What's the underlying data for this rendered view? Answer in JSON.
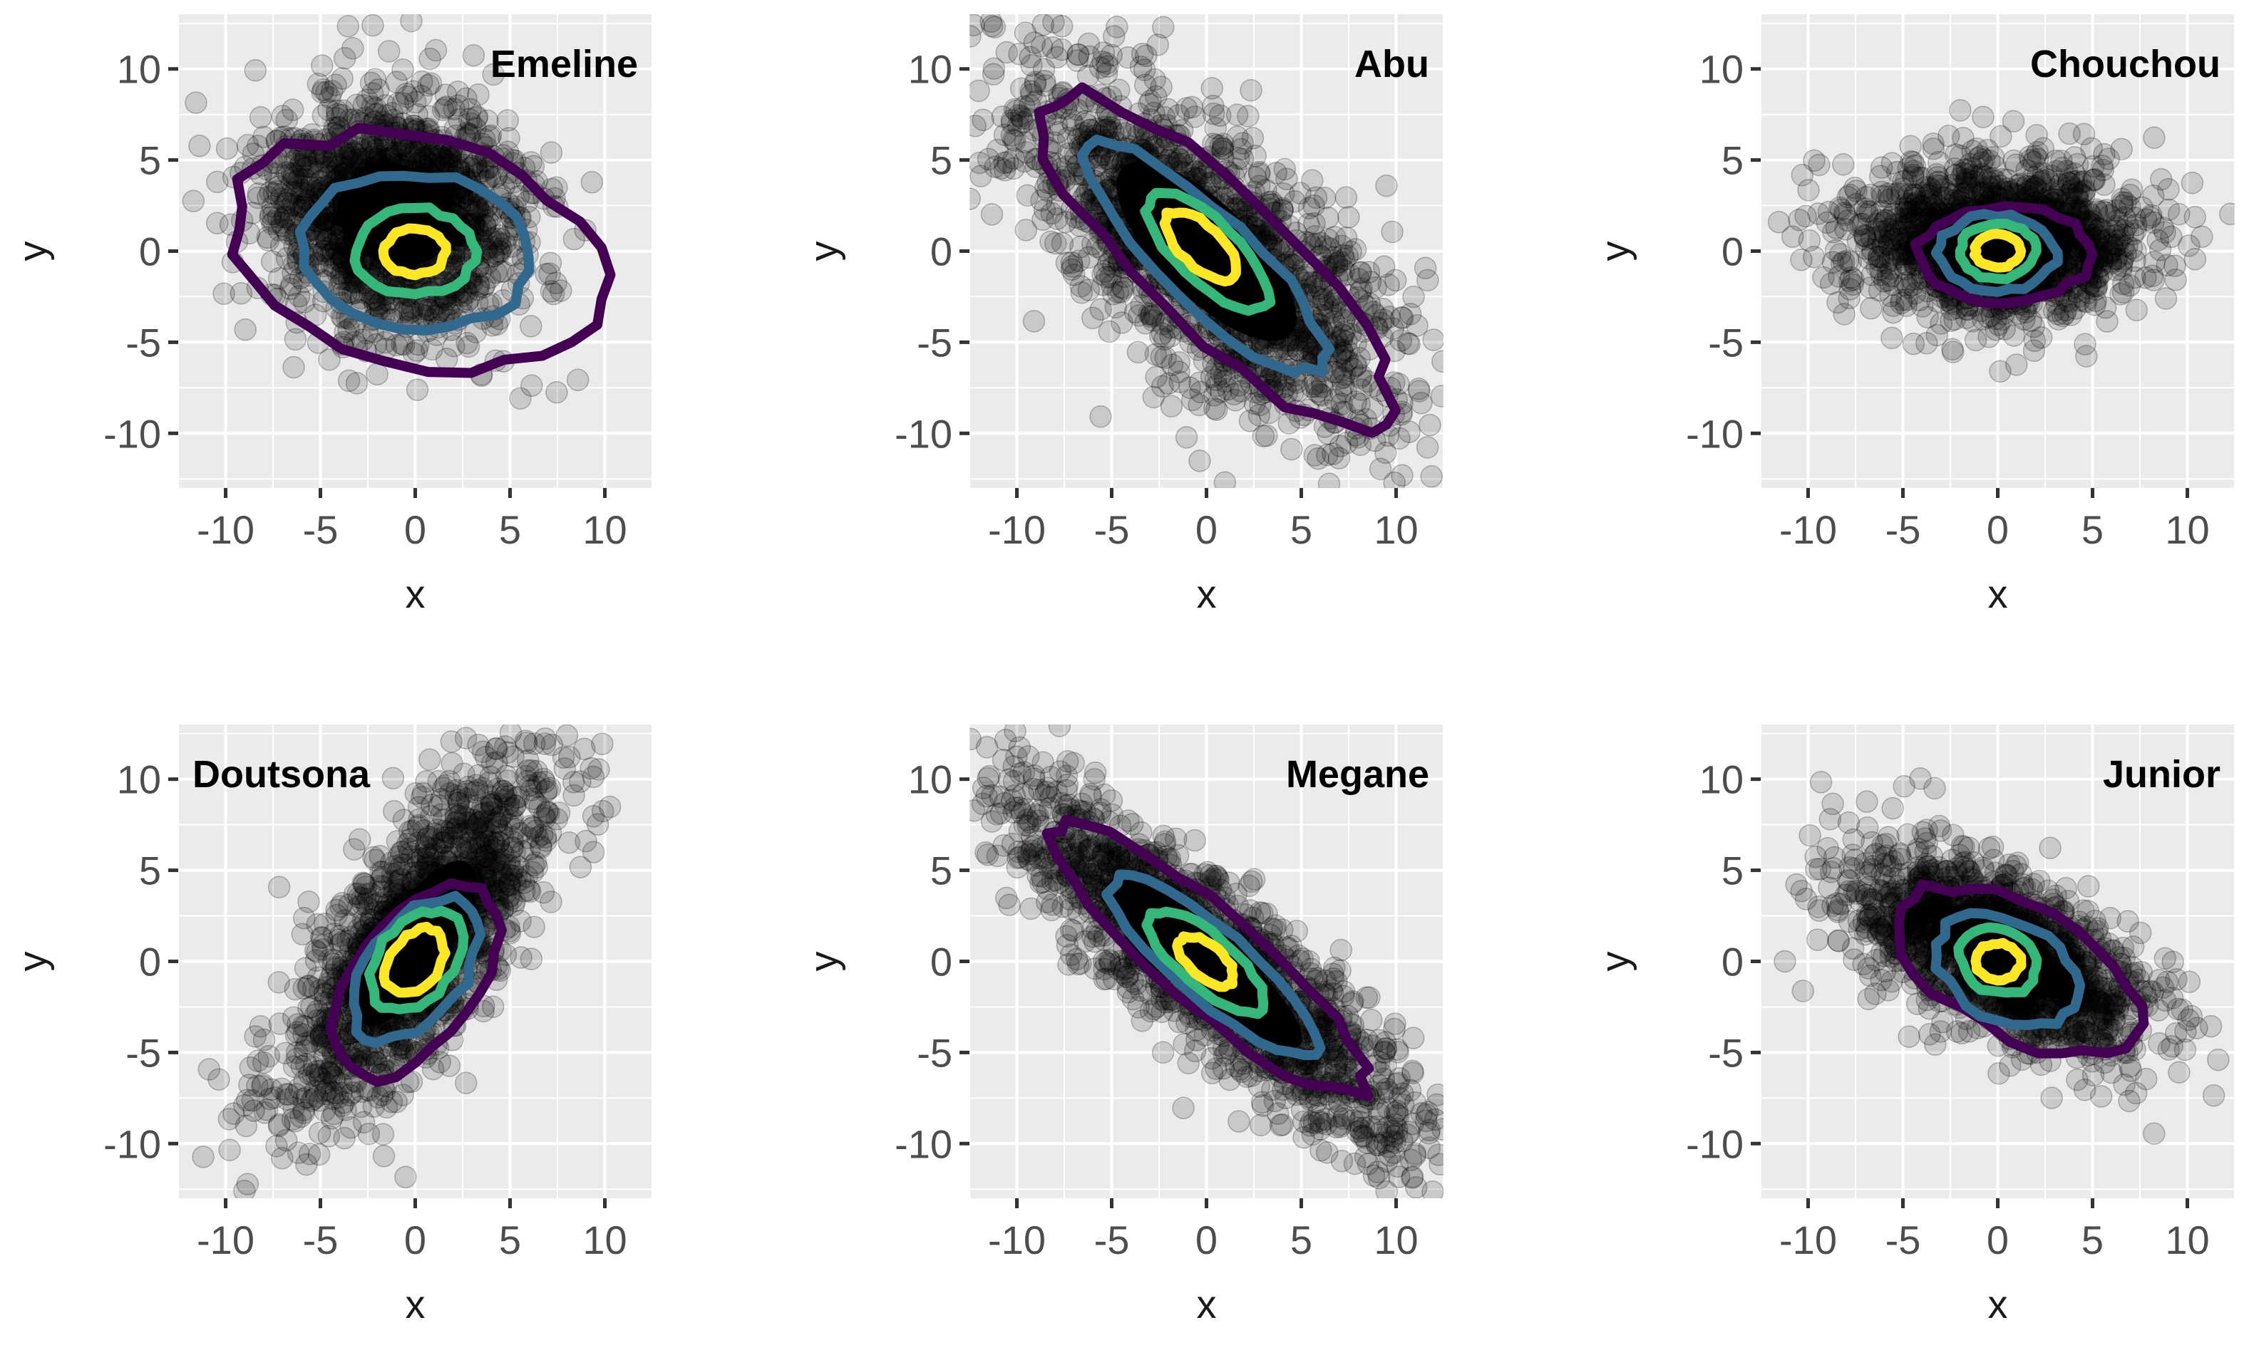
{
  "chart_data": [
    {
      "type": "scatter",
      "title": "Emeline",
      "xlabel": "x",
      "ylabel": "y",
      "xlim": [
        -12.5,
        12.5
      ],
      "ylim": [
        -13,
        13
      ],
      "xticks": [
        -10,
        -5,
        0,
        5,
        10
      ],
      "yticks": [
        -10,
        -5,
        0,
        5,
        10
      ],
      "xtick_labels": [
        "-10",
        "-5",
        "0",
        "5",
        "10"
      ],
      "ytick_labels": [
        "-10",
        "-5",
        "0",
        "5",
        "10"
      ],
      "grid": true,
      "point_cloud": {
        "center": [
          -1,
          2
        ],
        "spread": [
          8,
          7
        ],
        "angle_deg": -25
      },
      "contour_colors": [
        "#440154",
        "#31688e",
        "#35b779",
        "#fde725"
      ],
      "contours": [
        {
          "level": 1,
          "center": [
            0,
            0
          ],
          "rx": 10,
          "ry": 6,
          "angle_deg": -15
        },
        {
          "level": 2,
          "center": [
            0,
            0
          ],
          "rx": 6,
          "ry": 4.2,
          "angle_deg": -10
        },
        {
          "level": 3,
          "center": [
            0,
            0
          ],
          "rx": 3.2,
          "ry": 2.3,
          "angle_deg": 0
        },
        {
          "level": 4,
          "center": [
            0,
            0
          ],
          "rx": 1.6,
          "ry": 1.3,
          "angle_deg": 0
        }
      ]
    },
    {
      "type": "scatter",
      "title": "Abu",
      "xlabel": "x",
      "ylabel": "y",
      "xlim": [
        -12.5,
        12.5
      ],
      "ylim": [
        -13,
        13
      ],
      "xticks": [
        -10,
        -5,
        0,
        5,
        10
      ],
      "yticks": [
        -10,
        -5,
        0,
        5,
        10
      ],
      "xtick_labels": [
        "-10",
        "-5",
        "0",
        "5",
        "10"
      ],
      "ytick_labels": [
        "-10",
        "-5",
        "0",
        "5",
        "10"
      ],
      "grid": true,
      "point_cloud": {
        "center": [
          0,
          0
        ],
        "spread": [
          16,
          6.5
        ],
        "angle_deg": -45
      },
      "contour_colors": [
        "#440154",
        "#31688e",
        "#35b779",
        "#fde725"
      ],
      "contours": [
        {
          "level": 1,
          "center": [
            0.5,
            -0.5
          ],
          "rx": 12.5,
          "ry": 3.8,
          "angle_deg": -45
        },
        {
          "level": 2,
          "center": [
            0,
            -0.5
          ],
          "rx": 8.5,
          "ry": 2.5,
          "angle_deg": -45
        },
        {
          "level": 3,
          "center": [
            0,
            0
          ],
          "rx": 4.2,
          "ry": 1.7,
          "angle_deg": -45
        },
        {
          "level": 4,
          "center": [
            -0.3,
            0.3
          ],
          "rx": 2.4,
          "ry": 1.1,
          "angle_deg": -45
        }
      ]
    },
    {
      "type": "scatter",
      "title": "Chouchou",
      "xlabel": "x",
      "ylabel": "y",
      "xlim": [
        -12.5,
        12.5
      ],
      "ylim": [
        -13,
        13
      ],
      "xticks": [
        -10,
        -5,
        0,
        5,
        10
      ],
      "yticks": [
        -10,
        -5,
        0,
        5,
        10
      ],
      "xtick_labels": [
        "-10",
        "-5",
        "0",
        "5",
        "10"
      ],
      "ytick_labels": [
        "-10",
        "-5",
        "0",
        "5",
        "10"
      ],
      "grid": true,
      "point_cloud": {
        "center": [
          0,
          0.5
        ],
        "spread": [
          8.5,
          4.8
        ],
        "angle_deg": 0
      },
      "contour_colors": [
        "#440154",
        "#31688e",
        "#35b779",
        "#fde725"
      ],
      "contours": [
        {
          "level": 1,
          "center": [
            0.3,
            -0.2
          ],
          "rx": 4.6,
          "ry": 2.6,
          "angle_deg": 0
        },
        {
          "level": 2,
          "center": [
            0,
            -0.1
          ],
          "rx": 3.1,
          "ry": 2.1,
          "angle_deg": 0
        },
        {
          "level": 3,
          "center": [
            0,
            0
          ],
          "rx": 2,
          "ry": 1.5,
          "angle_deg": 0
        },
        {
          "level": 4,
          "center": [
            0,
            0
          ],
          "rx": 1.2,
          "ry": 0.9,
          "angle_deg": 0
        }
      ]
    },
    {
      "type": "scatter",
      "title": "Doutsona",
      "xlabel": "x",
      "ylabel": "y",
      "xlim": [
        -12.5,
        12.5
      ],
      "ylim": [
        -13,
        13
      ],
      "xticks": [
        -10,
        -5,
        0,
        5,
        10
      ],
      "yticks": [
        -10,
        -5,
        0,
        5,
        10
      ],
      "xtick_labels": [
        "-10",
        "-5",
        "0",
        "5",
        "10"
      ],
      "ytick_labels": [
        "-10",
        "-5",
        "0",
        "5",
        "10"
      ],
      "grid": true,
      "point_cloud": {
        "center": [
          0,
          1
        ],
        "spread": [
          13,
          4.8
        ],
        "angle_deg": 57
      },
      "contour_colors": [
        "#440154",
        "#31688e",
        "#35b779",
        "#fde725"
      ],
      "contours": [
        {
          "level": 1,
          "center": [
            0,
            -1
          ],
          "rx": 6,
          "ry": 3.4,
          "angle_deg": 55
        },
        {
          "level": 2,
          "center": [
            0,
            -0.5
          ],
          "rx": 4.4,
          "ry": 2.6,
          "angle_deg": 55
        },
        {
          "level": 3,
          "center": [
            0,
            0
          ],
          "rx": 3.1,
          "ry": 2,
          "angle_deg": 55
        },
        {
          "level": 4,
          "center": [
            0,
            0
          ],
          "rx": 2,
          "ry": 1.3,
          "angle_deg": 55
        }
      ]
    },
    {
      "type": "scatter",
      "title": "Megane",
      "xlabel": "x",
      "ylabel": "y",
      "xlim": [
        -12.5,
        12.5
      ],
      "ylim": [
        -13,
        13
      ],
      "xticks": [
        -10,
        -5,
        0,
        5,
        10
      ],
      "yticks": [
        -10,
        -5,
        0,
        5,
        10
      ],
      "xtick_labels": [
        "-10",
        "-5",
        "0",
        "5",
        "10"
      ],
      "ytick_labels": [
        "-10",
        "-5",
        "0",
        "5",
        "10"
      ],
      "grid": true,
      "point_cloud": {
        "center": [
          0,
          0
        ],
        "spread": [
          17,
          4.3
        ],
        "angle_deg": -42
      },
      "contour_colors": [
        "#440154",
        "#31688e",
        "#35b779",
        "#fde725"
      ],
      "contours": [
        {
          "level": 1,
          "center": [
            0.3,
            0
          ],
          "rx": 10.8,
          "ry": 2.6,
          "angle_deg": -42
        },
        {
          "level": 2,
          "center": [
            0.3,
            -0.2
          ],
          "rx": 7.2,
          "ry": 1.9,
          "angle_deg": -42
        },
        {
          "level": 3,
          "center": [
            0,
            0
          ],
          "rx": 3.9,
          "ry": 1.4,
          "angle_deg": -42
        },
        {
          "level": 4,
          "center": [
            0,
            0
          ],
          "rx": 1.8,
          "ry": 0.9,
          "angle_deg": -42
        }
      ]
    },
    {
      "type": "scatter",
      "title": "Junior",
      "xlabel": "x",
      "ylabel": "y",
      "xlim": [
        -12.5,
        12.5
      ],
      "ylim": [
        -13,
        13
      ],
      "xticks": [
        -10,
        -5,
        0,
        5,
        10
      ],
      "yticks": [
        -10,
        -5,
        0,
        5,
        10
      ],
      "xtick_labels": [
        "-10",
        "-5",
        "0",
        "5",
        "10"
      ],
      "ytick_labels": [
        "-10",
        "-5",
        "0",
        "5",
        "10"
      ],
      "grid": true,
      "point_cloud": {
        "center": [
          0,
          0.5
        ],
        "spread": [
          10,
          4.5
        ],
        "angle_deg": -30
      },
      "contour_colors": [
        "#440154",
        "#31688e",
        "#35b779",
        "#fde725"
      ],
      "contours": [
        {
          "level": 1,
          "center": [
            1,
            -0.5
          ],
          "rx": 7,
          "ry": 3.5,
          "angle_deg": -30
        },
        {
          "level": 2,
          "center": [
            0.5,
            -0.5
          ],
          "rx": 4,
          "ry": 2.7,
          "angle_deg": -30
        },
        {
          "level": 3,
          "center": [
            0,
            0
          ],
          "rx": 2.1,
          "ry": 1.7,
          "angle_deg": -30
        },
        {
          "level": 4,
          "center": [
            0,
            0
          ],
          "rx": 1.2,
          "ry": 1,
          "angle_deg": 0
        }
      ]
    }
  ]
}
